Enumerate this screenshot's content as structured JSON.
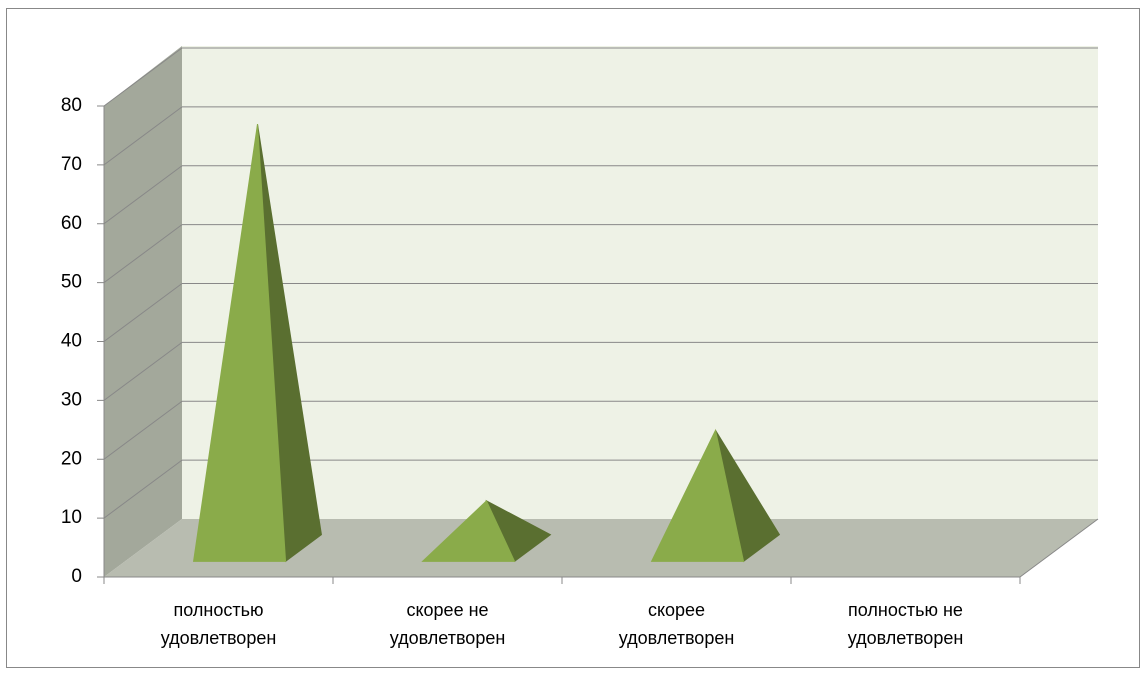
{
  "chart_data": {
    "type": "pyramid3d",
    "categories": [
      "полностью удовлетворен",
      "скорее не удовлетворен",
      "скорее удовлетворен",
      "полностью не удовлетворен"
    ],
    "values": [
      72,
      8,
      20,
      0
    ],
    "color": "#8aab4a",
    "ylim": [
      0,
      80
    ],
    "yticks": [
      0,
      10,
      20,
      30,
      40,
      50,
      60,
      70,
      80
    ],
    "grid": true
  }
}
